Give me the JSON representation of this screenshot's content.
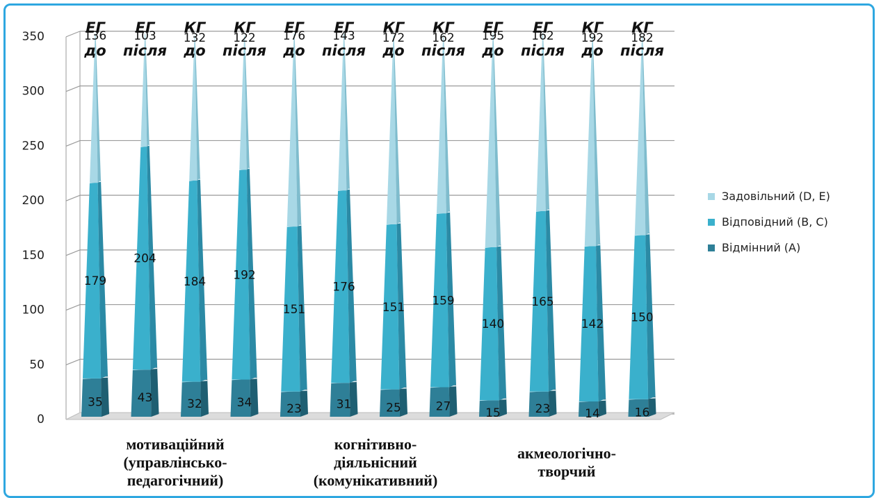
{
  "chart_data": {
    "type": "bar",
    "ylim": [
      0,
      350
    ],
    "y_ticks": [
      "0",
      "50",
      "100",
      "150",
      "200",
      "250",
      "300",
      "350"
    ],
    "grid": true,
    "legend_position": "right",
    "bar_labels": [
      [
        "ЕГ",
        "до"
      ],
      [
        "ЕГ",
        "після"
      ],
      [
        "КГ",
        "до"
      ],
      [
        "КГ",
        "після"
      ],
      [
        "ЕГ",
        "до"
      ],
      [
        "ЕГ",
        "після"
      ],
      [
        "КГ",
        "до"
      ],
      [
        "КГ",
        "після"
      ],
      [
        "ЕГ",
        "до"
      ],
      [
        "ЕГ",
        "після"
      ],
      [
        "КГ",
        "до"
      ],
      [
        "КГ",
        "після"
      ]
    ],
    "groups": [
      "мотиваційний\n(управлінсько-\nпедагогічний)",
      "когнітивно-\nдіяльнісний\n(комунікативний)",
      "акмеологічно-\nтворчий"
    ],
    "series": [
      {
        "name": "Відмінний (А)",
        "color": "#2e7f97",
        "values": [
          35,
          43,
          32,
          34,
          23,
          31,
          25,
          27,
          15,
          23,
          14,
          16
        ]
      },
      {
        "name": "Відповідний (В, С)",
        "color": "#3ab0cc",
        "values": [
          179,
          204,
          184,
          192,
          151,
          176,
          151,
          159,
          140,
          165,
          142,
          150
        ]
      },
      {
        "name": "Задовільний (D, E)",
        "color": "#a8d8e6",
        "values": [
          136,
          103,
          132,
          122,
          176,
          143,
          172,
          162,
          195,
          162,
          192,
          182
        ]
      }
    ],
    "legend_order": [
      2,
      1,
      0
    ]
  }
}
